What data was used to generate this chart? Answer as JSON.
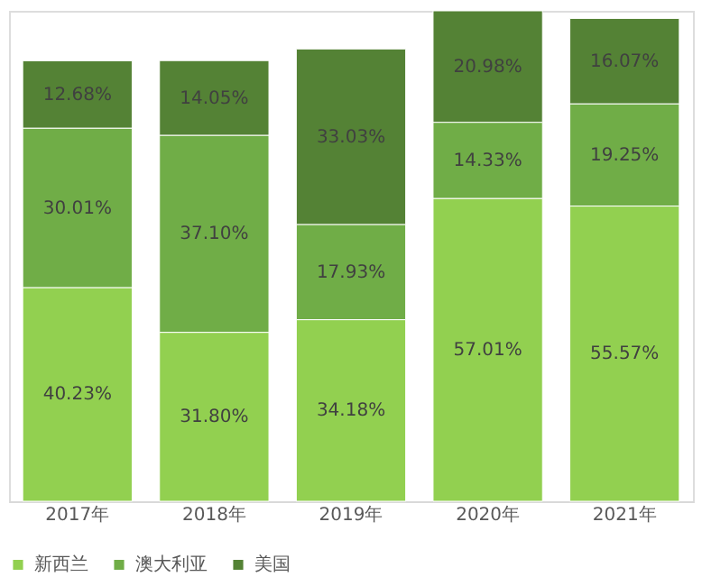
{
  "chart_data": {
    "type": "bar",
    "stacked": true,
    "categories": [
      "2017年",
      "2018年",
      "2019年",
      "2020年",
      "2021年"
    ],
    "legend": "bottom",
    "grid": false,
    "series": [
      {
        "name": "新西兰",
        "color": "#92d050",
        "values": [
          40.23,
          31.8,
          34.18,
          57.01,
          55.57
        ],
        "value_labels": [
          "40.23%",
          "31.80%",
          "34.18%",
          "57.01%",
          "55.57%"
        ]
      },
      {
        "name": "澳大利亚",
        "color": "#70ad47",
        "values": [
          30.01,
          37.1,
          17.93,
          14.33,
          19.25
        ],
        "value_labels": [
          "30.01%",
          "37.10%",
          "17.93%",
          "14.33%",
          "19.25%"
        ]
      },
      {
        "name": "美国",
        "color": "#548235",
        "values": [
          12.68,
          14.05,
          33.03,
          20.98,
          16.07
        ],
        "value_labels": [
          "12.68%",
          "14.05%",
          "33.03%",
          "20.98%",
          "16.07%"
        ]
      }
    ]
  }
}
